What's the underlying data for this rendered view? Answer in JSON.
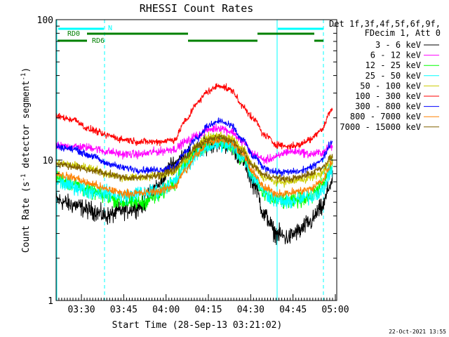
{
  "chart_data": {
    "type": "line",
    "title": "RHESSI Count Rates",
    "xlabel": "Start Time (28-Sep-13 03:21:02)",
    "ylabel_main": "Count Rate (s",
    "ylabel_sup1": "-1",
    "ylabel_mid": " detector segment",
    "ylabel_sup2": "-1",
    "ylabel_end": ")",
    "y_scale": "log",
    "ylim": [
      1,
      100
    ],
    "xlim": [
      "03:21:02",
      "05:00:30"
    ],
    "xticks": [
      "03:30",
      "03:45",
      "04:00",
      "04:15",
      "04:30",
      "04:45",
      "05:00"
    ],
    "yticks": [
      {
        "value": 1,
        "label": "1"
      },
      {
        "value": 10,
        "label": "10"
      },
      {
        "value": 100,
        "label": "100"
      }
    ],
    "legend_header": [
      "Det 1f,3f,4f,5f,6f,9f,",
      "FDecim 1, Att 0"
    ],
    "legend_position": "right",
    "grid": false,
    "x_knots": [
      "03:21",
      "03:27",
      "03:33",
      "03:39",
      "03:45",
      "03:51",
      "03:57",
      "04:03",
      "04:07",
      "04:11",
      "04:15",
      "04:19",
      "04:23",
      "04:27",
      "04:31",
      "04:35",
      "04:39",
      "04:43",
      "04:47",
      "04:51",
      "04:55",
      "04:59"
    ],
    "series": [
      {
        "name": "3 - 6 keV",
        "color": "#000000",
        "noise": 0.13,
        "values": [
          5.2,
          4.8,
          4.4,
          4.0,
          4.4,
          4.7,
          6.5,
          9.5,
          11.0,
          11.8,
          13.0,
          13.4,
          12.5,
          10.0,
          6.8,
          4.0,
          3.0,
          2.8,
          3.1,
          3.6,
          4.5,
          7.0
        ]
      },
      {
        "name": "6 - 12 keV",
        "color": "#ff00ff",
        "noise": 0.06,
        "values": [
          12.5,
          12.5,
          12.3,
          11.5,
          11.0,
          11.0,
          11.5,
          12.0,
          13.5,
          15.0,
          16.5,
          17.0,
          16.0,
          13.5,
          11.0,
          10.0,
          10.5,
          11.5,
          11.5,
          11.0,
          11.3,
          12.5
        ]
      },
      {
        "name": "12 - 25 keV",
        "color": "#00ff00",
        "noise": 0.11,
        "values": [
          7.5,
          6.8,
          6.0,
          5.5,
          5.0,
          5.0,
          5.5,
          7.0,
          9.5,
          11.5,
          13.0,
          13.5,
          12.8,
          10.5,
          7.5,
          5.5,
          5.2,
          5.0,
          5.2,
          5.5,
          6.5,
          9.0
        ]
      },
      {
        "name": "25 - 50 keV",
        "color": "#00ffff",
        "noise": 0.11,
        "values": [
          7.0,
          6.5,
          6.0,
          5.8,
          5.5,
          5.8,
          6.0,
          7.0,
          9.0,
          11.0,
          12.5,
          13.0,
          12.5,
          10.5,
          7.5,
          5.8,
          5.2,
          5.0,
          5.2,
          5.5,
          6.0,
          8.5
        ]
      },
      {
        "name": "50 - 100 keV",
        "color": "#cccc00",
        "noise": 0.06,
        "values": [
          9.5,
          9.2,
          8.8,
          8.0,
          7.5,
          7.5,
          7.8,
          8.2,
          10.0,
          12.5,
          14.5,
          15.0,
          14.2,
          12.0,
          9.0,
          7.5,
          7.0,
          7.0,
          7.2,
          7.5,
          8.0,
          10.5
        ]
      },
      {
        "name": "100 - 300 keV",
        "color": "#ff0000",
        "noise": 0.05,
        "values": [
          20.5,
          19.5,
          16.5,
          15.0,
          14.0,
          13.5,
          13.5,
          14.0,
          19.0,
          25.5,
          31.0,
          34.0,
          31.5,
          24.5,
          19.5,
          15.0,
          13.0,
          12.5,
          12.8,
          14.0,
          16.5,
          23.0
        ]
      },
      {
        "name": "300 - 800 keV",
        "color": "#0000ff",
        "noise": 0.05,
        "values": [
          12.5,
          12.0,
          10.8,
          9.5,
          8.8,
          8.5,
          8.5,
          9.0,
          11.5,
          14.5,
          17.5,
          19.0,
          17.5,
          14.0,
          10.5,
          8.8,
          8.2,
          8.2,
          8.3,
          8.8,
          10.0,
          13.5
        ]
      },
      {
        "name": "800 - 7000 keV",
        "color": "#ff8000",
        "noise": 0.06,
        "values": [
          8.0,
          7.5,
          6.8,
          6.2,
          5.8,
          5.8,
          6.0,
          6.5,
          8.5,
          11.0,
          13.5,
          14.0,
          13.5,
          11.0,
          8.0,
          6.3,
          5.8,
          5.8,
          6.0,
          6.2,
          7.0,
          9.5
        ]
      },
      {
        "name": "7000 - 15000 keV",
        "color": "#806000",
        "noise": 0.05,
        "values": [
          9.5,
          9.0,
          8.5,
          8.0,
          7.5,
          7.5,
          7.8,
          8.5,
          10.5,
          12.5,
          14.0,
          14.5,
          13.8,
          11.5,
          9.0,
          7.8,
          7.5,
          7.3,
          7.5,
          8.0,
          8.8,
          10.5
        ]
      }
    ],
    "annotations": {
      "attenuator_marks": [
        {
          "label": "N",
          "color": "#00ffff"
        },
        {
          "label": "RD0",
          "color": "#008000"
        },
        {
          "label": "RD6",
          "color": "#008000"
        }
      ],
      "footer_date": "22-Oct-2021 13:55"
    }
  }
}
